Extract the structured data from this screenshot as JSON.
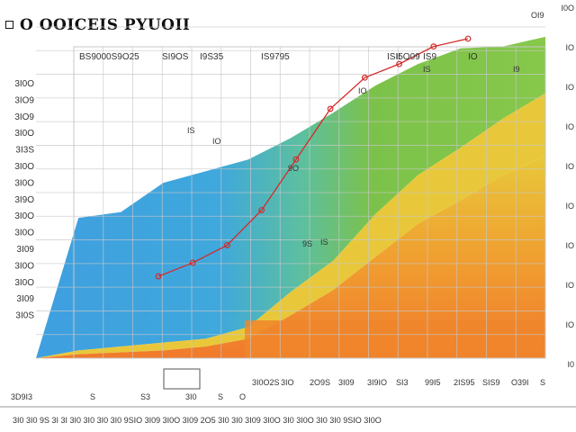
{
  "title": "O OOICEIS PYUOII",
  "colors": {
    "area_blue": "#3f9fe0",
    "area_teal": "#4fbfb0",
    "area_green": "#7cc24a",
    "area_yellow": "#e8c83a",
    "area_orange": "#f0862c",
    "series_line": "#d42a2a",
    "grid": "#c8c8c8"
  },
  "chart_data": {
    "type": "area",
    "title": "O OOICEIS PYUOII",
    "xlabel": "",
    "ylabel": "",
    "grid": true,
    "header_labels": [
      "BS9000S9O25",
      "SI9OS",
      "I9S35",
      "IS9795",
      "ISI5O09",
      "IS9",
      "IO"
    ],
    "y_ticks_left": [
      "3I0O",
      "3IO9",
      "3IO9",
      "3I0O",
      "3I3S",
      "3I0O",
      "3I0O",
      "3I9O",
      "3I0O",
      "3I0O",
      "3I09",
      "3I0O",
      "3I0O",
      "3I09",
      "3I0S"
    ],
    "y_ticks_right": [
      "I0O",
      "IO",
      "IO",
      "IO",
      "IO",
      "IO",
      "IO",
      "IO",
      "IO",
      "I0"
    ],
    "x_ticks_inner": [
      "3D9I3",
      "S",
      "S3",
      "3I0",
      "S",
      "O"
    ],
    "x_ticks_mid": [
      "3I0O2S",
      "3IO",
      "2O9S",
      "3I09",
      "3I9IO",
      "SI3",
      "99I5",
      "2IS95",
      "SIS9",
      "O39I",
      "S"
    ],
    "x_ticks_bottom": "3I0 3I0 9S 3I 3I 3I0 3I0 3I0 3I0 9SIO 3I09 3I0O 3I09 2O5 3I0 3I0 3I09 3I0O 3I0 3I0O 3I0 3I0 9SIO 3I0O",
    "value_labels": [
      "IS",
      "IO",
      "9O",
      "IO",
      "9S",
      "IS",
      "II",
      "IS",
      "I9",
      "OI9"
    ],
    "series": [
      {
        "values": [
          0,
          7.2,
          7.5,
          9.0,
          9.6,
          10.2,
          11.3,
          12.6,
          14.0,
          15.1,
          15.9,
          16.0,
          16.5
        ]
      },
      {
        "values": [
          0,
          0.4,
          0.6,
          0.8,
          1.0,
          1.6,
          3.4,
          5.0,
          7.4,
          9.4,
          10.8,
          12.3,
          13.6
        ]
      },
      {
        "values": [
          0,
          0.2,
          0.3,
          0.4,
          0.6,
          1.0,
          2.2,
          3.5,
          5.2,
          6.9,
          8.1,
          9.4,
          10.4
        ]
      }
    ],
    "overlay_series": [
      {
        "values": [
          4.2,
          4.9,
          5.8,
          7.6,
          10.2,
          12.8,
          14.4,
          15.1,
          16.0,
          16.4
        ]
      }
    ]
  }
}
